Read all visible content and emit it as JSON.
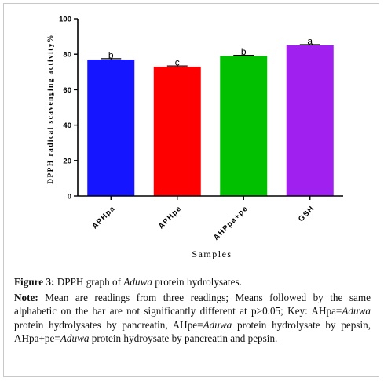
{
  "chart_data": {
    "type": "bar",
    "categories": [
      "APHpa",
      "APHpe",
      "AHPpa+pe",
      "GSH"
    ],
    "values": [
      77,
      73,
      79,
      85
    ],
    "colors": [
      "#1515ff",
      "#ff0000",
      "#00c000",
      "#a020f0"
    ],
    "sig_letters": [
      "b",
      "c",
      "b",
      "a"
    ],
    "error": [
      0.5,
      0.4,
      0.4,
      0.4
    ],
    "ylabel": "DPPH radical scavenging activity%",
    "xlabel": "Samples",
    "ylim": [
      0,
      100
    ],
    "yticks": [
      0,
      20,
      40,
      60,
      80,
      100
    ],
    "grid": false
  },
  "caption": {
    "figure_label": "Figure 3:",
    "figure_text_pre": "DPPH graph of ",
    "figure_text_ital": "Aduwa",
    "figure_text_post": " protein hydrolysates.",
    "note_label": "Note:",
    "note_text": "Mean are readings from three readings; Means followed by the same alphabetic on the bar are not significantly different at p>0.05; Key: AHpa=",
    "note_ital_1": "Aduwa",
    "note_text_2": " protein hydrolysates by pancreatin, AHpe=",
    "note_ital_2": "Aduwa",
    "note_text_3": " protein hydrolysate by pepsin, AHpa+pe=",
    "note_ital_3": "Aduwa",
    "note_text_4": " protein hydroysate by pancreatin and pepsin."
  }
}
